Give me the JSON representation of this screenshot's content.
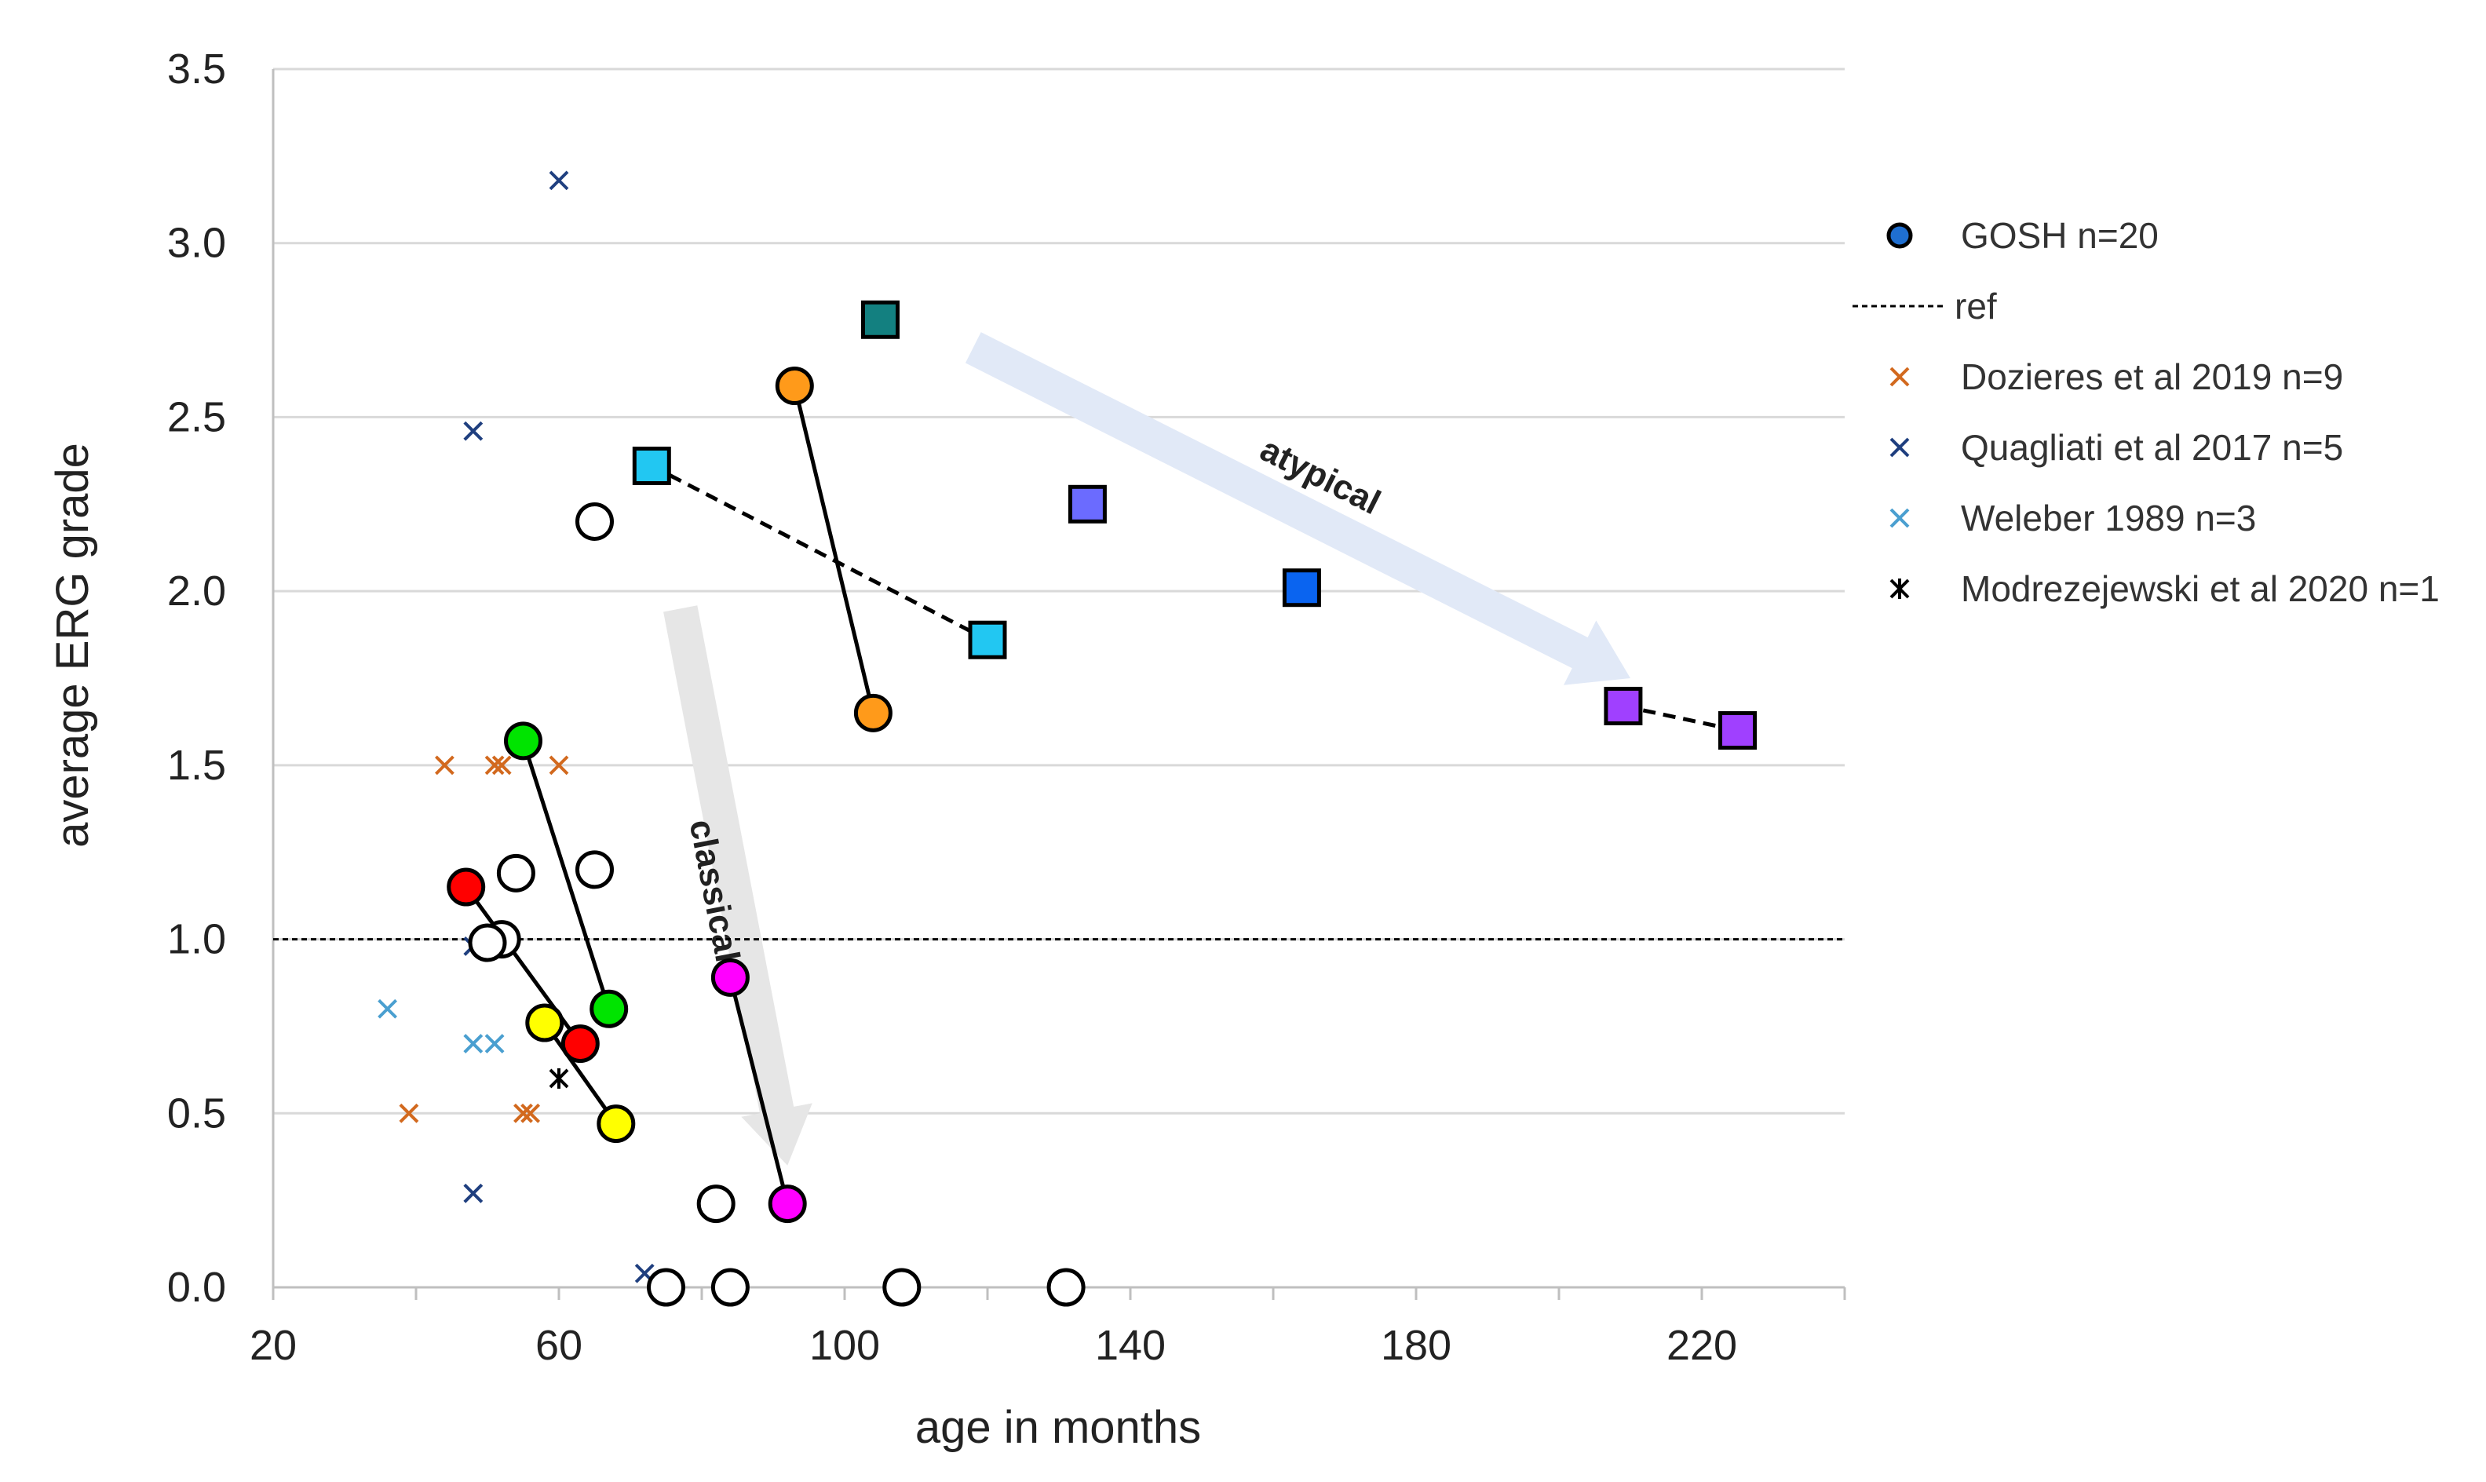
{
  "chart_data": {
    "type": "scatter",
    "title": "",
    "xlabel": "age in months",
    "ylabel": "average ERG grade",
    "xlim": [
      20,
      240
    ],
    "ylim": [
      0,
      3.5
    ],
    "x_ticks": [
      "20",
      "60",
      "100",
      "140",
      "180",
      "220"
    ],
    "y_ticks": [
      "0.0",
      "0.5",
      "1.0",
      "1.5",
      "2.0",
      "2.5",
      "3.0",
      "3.5"
    ],
    "grid": "horizontal",
    "reference_line": {
      "name": "ref",
      "y": 1.0
    },
    "legend_position": "right",
    "legend": [
      {
        "label": "GOSH n=20",
        "marker": "circle",
        "color": "#1f6fd1"
      },
      {
        "label": "ref",
        "marker": "dashed-line",
        "color": "#000000"
      },
      {
        "label": "Dozieres et al 2019 n=9",
        "marker": "x",
        "color": "#d2691e"
      },
      {
        "label": "Quagliati et al 2017 n=5",
        "marker": "x",
        "color": "#1f3f7f"
      },
      {
        "label": "Weleber 1989 n=3",
        "marker": "x",
        "color": "#4a9fd0"
      },
      {
        "label": "Modrezejewski et al 2020 n=1",
        "marker": "asterisk",
        "color": "#000000"
      }
    ],
    "annotations": [
      {
        "text": "atypical",
        "from": [
          118,
          2.7
        ],
        "to": [
          210,
          1.75
        ],
        "color": "#e1e9f7"
      },
      {
        "text": "classical",
        "from": [
          77,
          1.95
        ],
        "to": [
          92,
          0.35
        ],
        "color": "#e6e6e6"
      }
    ],
    "gosh_connected_pairs": [
      {
        "marker": "circle",
        "color": "#ff0000",
        "points": [
          [
            47,
            1.15
          ],
          [
            63,
            0.7
          ]
        ],
        "line": "solid"
      },
      {
        "marker": "circle",
        "color": "#ffff00",
        "points": [
          [
            58,
            0.76
          ],
          [
            68,
            0.47
          ]
        ],
        "line": "solid"
      },
      {
        "marker": "circle",
        "color": "#00e400",
        "points": [
          [
            55,
            1.57
          ],
          [
            67,
            0.8
          ]
        ],
        "line": "solid"
      },
      {
        "marker": "circle",
        "color": "#ff00ff",
        "points": [
          [
            84,
            0.89
          ],
          [
            92,
            0.24
          ]
        ],
        "line": "solid"
      },
      {
        "marker": "circle",
        "color": "#ff9a1a",
        "points": [
          [
            93,
            2.59
          ],
          [
            104,
            1.65
          ]
        ],
        "line": "solid"
      },
      {
        "marker": "square",
        "color": "#22c7f2",
        "points": [
          [
            73,
            2.36
          ],
          [
            120,
            1.86
          ]
        ],
        "line": "dashed"
      },
      {
        "marker": "square",
        "color": "#a040ff",
        "points": [
          [
            209,
            1.67
          ],
          [
            225,
            1.6
          ]
        ],
        "line": "dashed"
      }
    ],
    "gosh_single_points": [
      {
        "marker": "square",
        "color": "#138080",
        "x": 105,
        "y": 2.78
      },
      {
        "marker": "square",
        "color": "#6b6bff",
        "x": 134,
        "y": 2.25
      },
      {
        "marker": "square",
        "color": "#0a64f0",
        "x": 164,
        "y": 2.01
      }
    ],
    "gosh_open_circles": [
      [
        65,
        2.2
      ],
      [
        54,
        1.19
      ],
      [
        65,
        1.2
      ],
      [
        52,
        1.0
      ],
      [
        50,
        0.99
      ],
      [
        82,
        0.24
      ],
      [
        75,
        0.0
      ],
      [
        84,
        0.0
      ],
      [
        108,
        0.0
      ],
      [
        131,
        0.0
      ]
    ],
    "dozieres_2019": [
      [
        44,
        1.5
      ],
      [
        51,
        1.5
      ],
      [
        52,
        1.5
      ],
      [
        60,
        1.5
      ],
      [
        39,
        0.5
      ],
      [
        55,
        0.5
      ],
      [
        56,
        0.5
      ]
    ],
    "quagliati_2017": [
      [
        60,
        3.18
      ],
      [
        48,
        2.46
      ],
      [
        48,
        0.98
      ],
      [
        48,
        0.27
      ],
      [
        72,
        0.04
      ]
    ],
    "weleber_1989": [
      [
        36,
        0.8
      ],
      [
        48,
        0.7
      ],
      [
        51,
        0.7
      ]
    ],
    "modrezejewski_2020": [
      [
        60,
        0.6
      ]
    ]
  }
}
